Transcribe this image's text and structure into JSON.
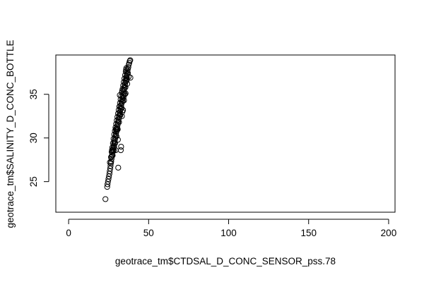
{
  "chart_data": {
    "type": "scatter",
    "title": "",
    "xlabel": "geotrace_tm$CTDSAL_D_CONC_SENSOR_pss.78",
    "ylabel": "geotrace_tm$SALINITY_D_CONC_BOTTLE",
    "xlim": [
      -8,
      204
    ],
    "ylim": [
      21.5,
      39.5
    ],
    "x_ticks": [
      0,
      50,
      100,
      150,
      200
    ],
    "y_ticks": [
      25,
      30,
      35
    ],
    "grid": false,
    "legend": "none",
    "marker": "open-circle",
    "points": [
      [
        23.0,
        23.0
      ],
      [
        24.1,
        24.4
      ],
      [
        24.3,
        24.7
      ],
      [
        24.6,
        25.0
      ],
      [
        24.9,
        25.3
      ],
      [
        25.2,
        25.6
      ],
      [
        25.5,
        25.9
      ],
      [
        25.7,
        26.2
      ],
      [
        26.0,
        26.5
      ],
      [
        26.2,
        26.8
      ],
      [
        26.4,
        27.1
      ],
      [
        26.6,
        27.3
      ],
      [
        26.8,
        27.6
      ],
      [
        27.0,
        27.9
      ],
      [
        27.2,
        28.1
      ],
      [
        27.4,
        28.3
      ],
      [
        27.6,
        28.5
      ],
      [
        27.8,
        28.7
      ],
      [
        28.0,
        28.9
      ],
      [
        28.2,
        29.1
      ],
      [
        28.4,
        29.3
      ],
      [
        28.6,
        29.5
      ],
      [
        28.8,
        29.7
      ],
      [
        29.0,
        29.9
      ],
      [
        29.2,
        30.1
      ],
      [
        29.4,
        30.3
      ],
      [
        29.6,
        30.5
      ],
      [
        29.8,
        30.7
      ],
      [
        30.0,
        30.9
      ],
      [
        30.2,
        31.1
      ],
      [
        30.4,
        31.3
      ],
      [
        30.6,
        31.5
      ],
      [
        30.8,
        31.7
      ],
      [
        31.0,
        31.9
      ],
      [
        31.2,
        32.1
      ],
      [
        31.4,
        32.3
      ],
      [
        31.6,
        32.5
      ],
      [
        31.8,
        32.7
      ],
      [
        32.0,
        32.9
      ],
      [
        32.2,
        33.1
      ],
      [
        32.4,
        33.3
      ],
      [
        32.6,
        33.5
      ],
      [
        32.8,
        33.7
      ],
      [
        33.0,
        33.9
      ],
      [
        33.2,
        34.1
      ],
      [
        33.4,
        34.3
      ],
      [
        33.6,
        34.5
      ],
      [
        33.8,
        34.7
      ],
      [
        34.0,
        34.9
      ],
      [
        34.2,
        35.1
      ],
      [
        34.4,
        35.3
      ],
      [
        34.6,
        35.5
      ],
      [
        34.8,
        35.7
      ],
      [
        35.0,
        35.9
      ],
      [
        35.2,
        36.1
      ],
      [
        35.4,
        36.3
      ],
      [
        35.6,
        36.5
      ],
      [
        35.8,
        36.7
      ],
      [
        36.0,
        36.9
      ],
      [
        36.2,
        37.1
      ],
      [
        36.4,
        37.3
      ],
      [
        36.6,
        37.5
      ],
      [
        36.8,
        37.7
      ],
      [
        37.0,
        37.9
      ],
      [
        37.3,
        38.1
      ],
      [
        37.6,
        38.4
      ],
      [
        37.9,
        38.6
      ],
      [
        38.2,
        38.8
      ],
      [
        38.5,
        38.9
      ],
      [
        26.9,
        28.4
      ],
      [
        27.3,
        28.9
      ],
      [
        27.7,
        29.4
      ],
      [
        28.1,
        29.9
      ],
      [
        28.5,
        30.4
      ],
      [
        28.9,
        30.8
      ],
      [
        29.3,
        31.2
      ],
      [
        29.7,
        31.6
      ],
      [
        30.1,
        32.0
      ],
      [
        30.5,
        32.4
      ],
      [
        30.9,
        32.8
      ],
      [
        31.3,
        33.2
      ],
      [
        31.7,
        33.6
      ],
      [
        32.1,
        34.0
      ],
      [
        32.5,
        34.4
      ],
      [
        32.9,
        34.8
      ],
      [
        33.3,
        35.2
      ],
      [
        33.7,
        35.6
      ],
      [
        34.1,
        36.0
      ],
      [
        34.5,
        36.4
      ],
      [
        34.9,
        36.8
      ],
      [
        35.3,
        37.2
      ],
      [
        35.7,
        37.6
      ],
      [
        36.1,
        38.0
      ],
      [
        27.5,
        28.0
      ],
      [
        28.3,
        28.6
      ],
      [
        29.1,
        29.4
      ],
      [
        29.9,
        30.2
      ],
      [
        30.7,
        31.0
      ],
      [
        31.5,
        31.8
      ],
      [
        32.3,
        32.6
      ],
      [
        33.1,
        33.4
      ],
      [
        33.9,
        34.2
      ],
      [
        34.7,
        35.0
      ],
      [
        35.5,
        35.8
      ],
      [
        36.3,
        36.6
      ],
      [
        37.1,
        37.4
      ],
      [
        25.8,
        27.2
      ],
      [
        26.5,
        27.8
      ],
      [
        27.1,
        28.6
      ],
      [
        29.5,
        31.0
      ],
      [
        31.9,
        33.6
      ],
      [
        33.5,
        35.4
      ],
      [
        35.9,
        37.8
      ],
      [
        28.4,
        29.0
      ],
      [
        30.3,
        30.9
      ],
      [
        32.2,
        32.6
      ],
      [
        34.3,
        34.6
      ],
      [
        36.4,
        36.9
      ],
      [
        31.0,
        26.6
      ],
      [
        32.6,
        28.6
      ],
      [
        32.8,
        29.0
      ],
      [
        32.0,
        34.9
      ],
      [
        33.3,
        32.5
      ],
      [
        34.0,
        33.2
      ],
      [
        34.6,
        34.3
      ],
      [
        35.2,
        35.0
      ],
      [
        35.6,
        35.1
      ],
      [
        38.6,
        36.9
      ],
      [
        29.4,
        28.6
      ],
      [
        30.8,
        29.8
      ],
      [
        33.6,
        33.0
      ],
      [
        36.6,
        36.2
      ],
      [
        37.5,
        37.0
      ]
    ]
  }
}
